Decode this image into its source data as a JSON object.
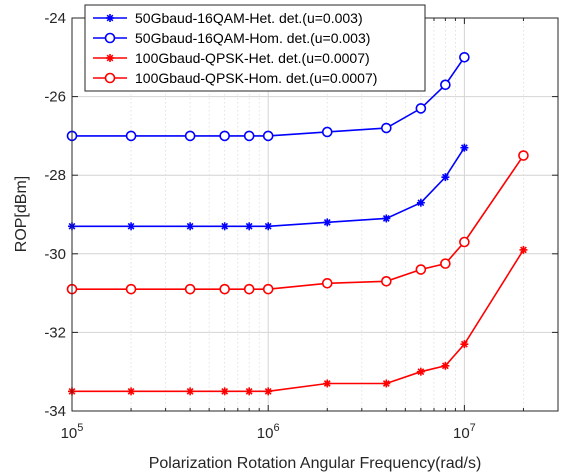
{
  "chart_data": {
    "type": "line",
    "title": "",
    "xlabel": "Polarization Rotation Angular Frequency(rad/s)",
    "ylabel": "ROP[dBm]",
    "xscale": "log",
    "xlim": [
      100000,
      30000000
    ],
    "ylim": [
      -34,
      -24
    ],
    "x_ticks": [
      {
        "value": 100000,
        "base": "10",
        "exp": "5"
      },
      {
        "value": 1000000,
        "base": "10",
        "exp": "6"
      },
      {
        "value": 10000000,
        "base": "10",
        "exp": "7"
      }
    ],
    "y_ticks": [
      {
        "value": -24,
        "label": "-24"
      },
      {
        "value": -26,
        "label": "-26"
      },
      {
        "value": -28,
        "label": "-28"
      },
      {
        "value": -30,
        "label": "-30"
      },
      {
        "value": -32,
        "label": "-32"
      },
      {
        "value": -34,
        "label": "-34"
      }
    ],
    "grid": true,
    "legend_position": "top-left",
    "series": [
      {
        "name": "50Gbaud-16QAM-Het. det.(u=0.003)",
        "color": "#0000ff",
        "marker": "asterisk",
        "x": [
          100000,
          200000,
          400000,
          600000,
          800000,
          1000000,
          2000000,
          4000000,
          6000000,
          8000000,
          10000000
        ],
        "y": [
          -29.3,
          -29.3,
          -29.3,
          -29.3,
          -29.3,
          -29.3,
          -29.2,
          -29.1,
          -28.7,
          -28.05,
          -27.3
        ]
      },
      {
        "name": "50Gbaud-16QAM-Hom. det.(u=0.003)",
        "color": "#0000ff",
        "marker": "circle",
        "x": [
          100000,
          200000,
          400000,
          600000,
          800000,
          1000000,
          2000000,
          4000000,
          6000000,
          8000000,
          10000000
        ],
        "y": [
          -27.0,
          -27.0,
          -27.0,
          -27.0,
          -27.0,
          -27.0,
          -26.9,
          -26.8,
          -26.3,
          -25.7,
          -25.0
        ]
      },
      {
        "name": "100Gbaud-QPSK-Het. det.(u=0.0007)",
        "color": "#ff0000",
        "marker": "asterisk",
        "x": [
          100000,
          200000,
          400000,
          600000,
          800000,
          1000000,
          2000000,
          4000000,
          6000000,
          8000000,
          10000000,
          20000000
        ],
        "y": [
          -33.5,
          -33.5,
          -33.5,
          -33.5,
          -33.5,
          -33.5,
          -33.3,
          -33.3,
          -33.0,
          -32.85,
          -32.3,
          -29.9
        ]
      },
      {
        "name": "100Gbaud-QPSK-Hom. det.(u=0.0007)",
        "color": "#ff0000",
        "marker": "circle",
        "x": [
          100000,
          200000,
          400000,
          600000,
          800000,
          1000000,
          2000000,
          4000000,
          6000000,
          8000000,
          10000000,
          20000000
        ],
        "y": [
          -30.9,
          -30.9,
          -30.9,
          -30.9,
          -30.9,
          -30.9,
          -30.75,
          -30.7,
          -30.4,
          -30.25,
          -29.7,
          -27.5
        ]
      }
    ]
  }
}
